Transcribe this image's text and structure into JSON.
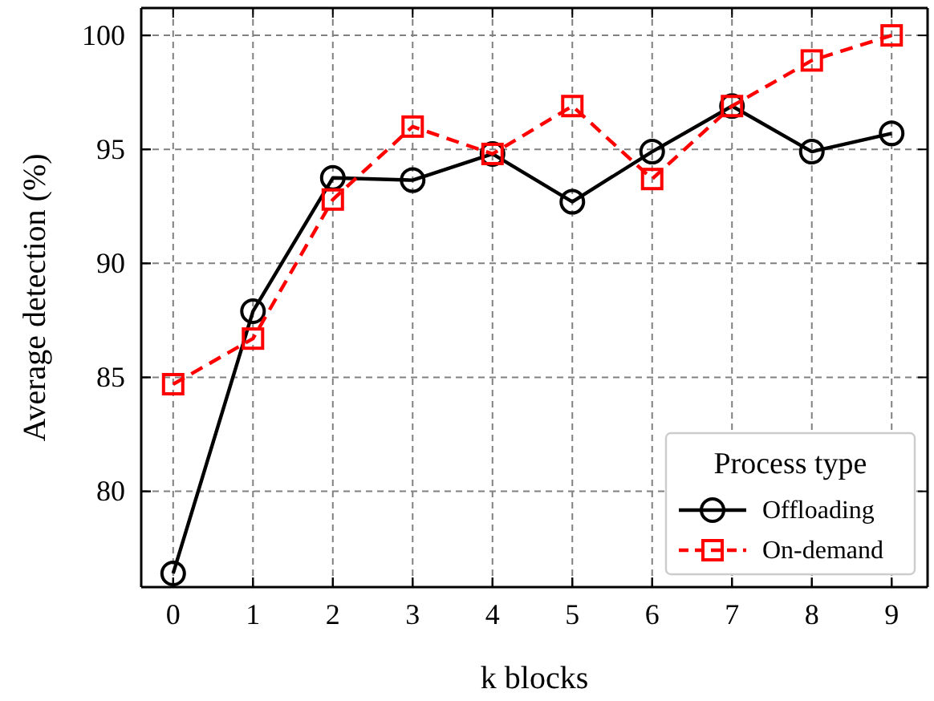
{
  "chart_data": {
    "type": "line",
    "xlabel": "k blocks",
    "ylabel": "Average detection (%)",
    "legend_title": "Process type",
    "x": [
      0,
      1,
      2,
      3,
      4,
      5,
      6,
      7,
      8,
      9
    ],
    "series": [
      {
        "name": "Offloading",
        "color": "#000000",
        "marker": "circle",
        "line_style": "solid",
        "values": [
          76.4,
          87.9,
          93.75,
          93.65,
          94.8,
          92.7,
          94.9,
          96.9,
          94.9,
          95.7
        ]
      },
      {
        "name": "On-demand",
        "color": "#ff0000",
        "marker": "square",
        "line_style": "dashed",
        "values": [
          84.7,
          86.7,
          92.8,
          96.0,
          94.8,
          96.9,
          93.7,
          96.9,
          98.9,
          100.0
        ]
      }
    ],
    "xlim": [
      -0.4,
      9.45
    ],
    "xticks": [
      0,
      1,
      2,
      3,
      4,
      5,
      6,
      7,
      8,
      9
    ],
    "ylim": [
      75.8,
      101.2
    ],
    "yticks": [
      80,
      85,
      90,
      95,
      100
    ],
    "grid": true,
    "legend": "bottom right"
  }
}
